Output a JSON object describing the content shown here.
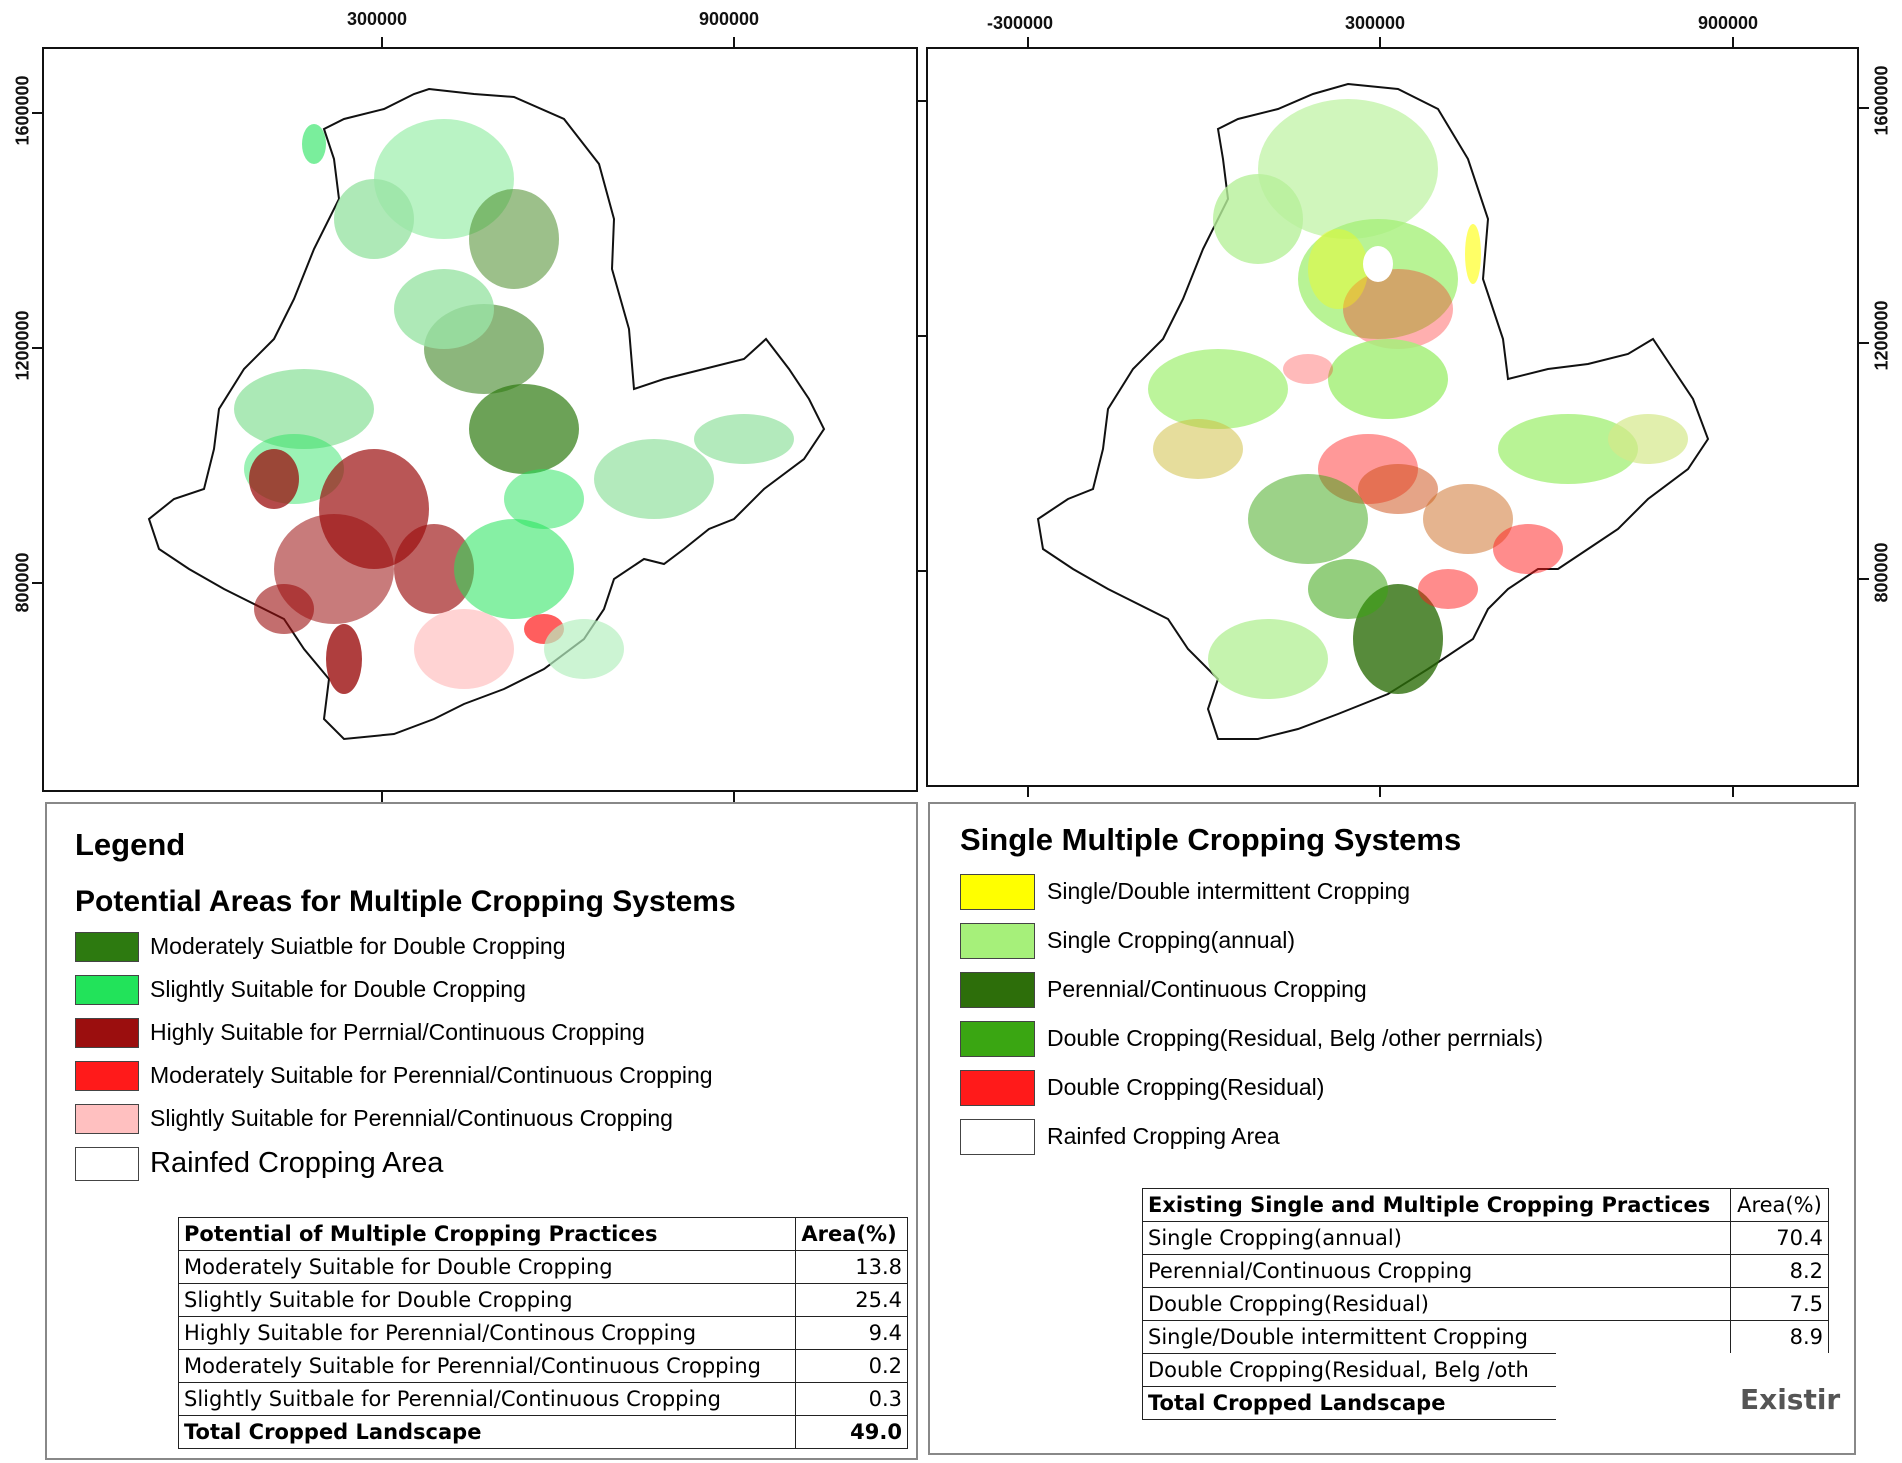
{
  "left_map": {
    "x_ticks": [
      "300000",
      "900000"
    ],
    "y_ticks": [
      "1600000",
      "1200000",
      "800000"
    ],
    "colors": {
      "moderate_double": "#2d7a10",
      "slight_double": "#22e35a",
      "high_perennial": "#9b0e0e",
      "moderate_perennial": "#ff1a1a",
      "slight_perennial": "#ffc0c0",
      "rainfed": "#ffffff"
    }
  },
  "right_map": {
    "x_ticks": [
      "-300000",
      "300000",
      "900000"
    ],
    "y_ticks": [
      "1600000",
      "1200000",
      "800000"
    ],
    "colors": {
      "intermittent": "#ffff00",
      "single": "#a6f07a",
      "perennial": "#2d6e0a",
      "double_belg": "#3aa612",
      "double_residual": "#ff1a1a",
      "rainfed": "#ffffff"
    }
  },
  "left_legend": {
    "heading": "Legend",
    "title": "Potential Areas for Multiple Cropping Systems",
    "items": [
      {
        "label": "Moderately Suiatble for Double Cropping",
        "color": "#2d7a10"
      },
      {
        "label": "Slightly Suitable for Double Cropping",
        "color": "#22e35a"
      },
      {
        "label": "Highly Suitable for Perrnial/Continuous Cropping",
        "color": "#9b0e0e"
      },
      {
        "label": "Moderately Suitable for Perennial/Continuous Cropping",
        "color": "#ff1a1a"
      },
      {
        "label": "Slightly Suitable for Perennial/Continuous Cropping",
        "color": "#ffc0c0"
      },
      {
        "label": "Rainfed Cropping Area",
        "color": "#ffffff"
      }
    ],
    "table": {
      "headers": [
        "Potential of  Multiple Cropping Practices",
        "Area(%)"
      ],
      "rows": [
        [
          "Moderately Suitable for Double Cropping",
          "13.8"
        ],
        [
          "Slightly Suitable for Double Cropping",
          "25.4"
        ],
        [
          "Highly Suitable for Perennial/Continous Cropping",
          "9.4"
        ],
        [
          "Moderately Suitable for Perennial/Continuous Cropping",
          "0.2"
        ],
        [
          "Slightly Suitbale for Perennial/Continuous Cropping",
          "0.3"
        ]
      ],
      "total": [
        "Total Cropped Landscape",
        "49.0"
      ]
    }
  },
  "right_legend": {
    "title": "Single Multiple Cropping Systems",
    "items": [
      {
        "label": "Single/Double intermittent Cropping",
        "color": "#ffff00"
      },
      {
        "label": "Single Cropping(annual)",
        "color": "#a6f07a"
      },
      {
        "label": "Perennial/Continuous Cropping",
        "color": "#2d6e0a"
      },
      {
        "label": "Double Cropping(Residual, Belg /other perrnials)",
        "color": "#3aa612"
      },
      {
        "label": "Double Cropping(Residual)",
        "color": "#ff1a1a"
      },
      {
        "label": "Rainfed Cropping Area",
        "color": "#ffffff"
      }
    ],
    "table": {
      "headers": [
        "Existing Single and Multiple Cropping Practices",
        "Area(%)"
      ],
      "rows": [
        [
          "Single Cropping(annual)",
          "70.4"
        ],
        [
          "Perennial/Continuous Cropping",
          "8.2"
        ],
        [
          "Double Cropping(Residual)",
          "7.5"
        ],
        [
          "Single/Double intermittent Cropping",
          "8.9"
        ],
        [
          "Double Cropping(Residual, Belg /oth",
          ""
        ]
      ],
      "total": [
        "Total Cropped Landscape",
        ""
      ]
    },
    "overlay_text": "Existir"
  }
}
